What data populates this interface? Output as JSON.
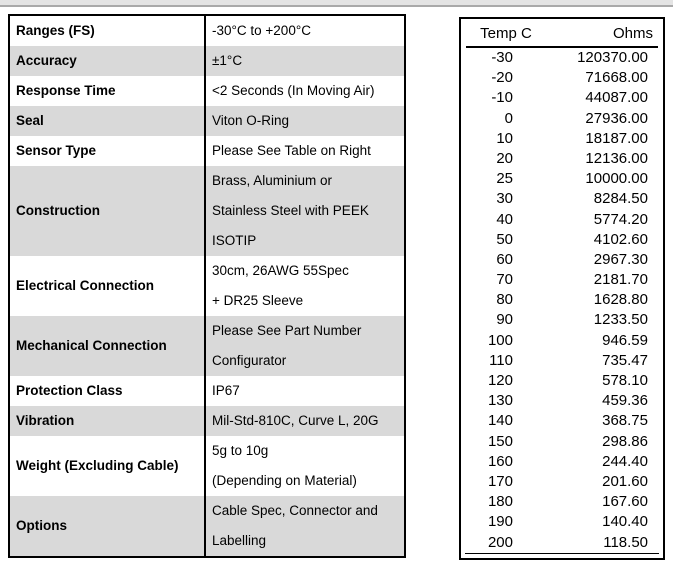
{
  "page": {
    "background": "#ffffff",
    "top_rule_color": "#e4e4e4",
    "top_rule_edge_color": "#a9a9a9"
  },
  "spec_table": {
    "shading_color": "#d9d9d9",
    "border_color": "#000000",
    "rows": [
      {
        "label": "Ranges (FS)",
        "value": "-30°C to +200°C"
      },
      {
        "label": "Accuracy",
        "value": "±1°C"
      },
      {
        "label": "Response Time",
        "value": "<2 Seconds (In Moving Air)"
      },
      {
        "label": "Seal",
        "value": "Viton O-Ring"
      },
      {
        "label": "Sensor Type",
        "value": "Please See Table on Right"
      },
      {
        "label": "Construction",
        "value": "Brass, Aluminium or\nStainless Steel with PEEK\nISOTIP"
      },
      {
        "label": "Electrical Connection",
        "value": "30cm, 26AWG 55Spec\n+ DR25 Sleeve"
      },
      {
        "label": "Mechanical Connection",
        "value": "Please See Part Number\nConfigurator"
      },
      {
        "label": "Protection Class",
        "value": "IP67"
      },
      {
        "label": "Vibration",
        "value": "Mil-Std-810C, Curve L, 20G"
      },
      {
        "label": "Weight (Excluding Cable)",
        "value": "5g to 10g\n(Depending on Material)"
      },
      {
        "label": "Options",
        "value": "Cable Spec, Connector and\nLabelling"
      }
    ]
  },
  "resistance_table": {
    "headers": {
      "temp": "Temp C",
      "ohms": "Ohms"
    },
    "rows": [
      {
        "temp": "-30",
        "ohms": "120370.00"
      },
      {
        "temp": "-20",
        "ohms": "71668.00"
      },
      {
        "temp": "-10",
        "ohms": "44087.00"
      },
      {
        "temp": "0",
        "ohms": "27936.00"
      },
      {
        "temp": "10",
        "ohms": "18187.00"
      },
      {
        "temp": "20",
        "ohms": "12136.00"
      },
      {
        "temp": "25",
        "ohms": "10000.00"
      },
      {
        "temp": "30",
        "ohms": "8284.50"
      },
      {
        "temp": "40",
        "ohms": "5774.20"
      },
      {
        "temp": "50",
        "ohms": "4102.60"
      },
      {
        "temp": "60",
        "ohms": "2967.30"
      },
      {
        "temp": "70",
        "ohms": "2181.70"
      },
      {
        "temp": "80",
        "ohms": "1628.80"
      },
      {
        "temp": "90",
        "ohms": "1233.50"
      },
      {
        "temp": "100",
        "ohms": "946.59"
      },
      {
        "temp": "110",
        "ohms": "735.47"
      },
      {
        "temp": "120",
        "ohms": "578.10"
      },
      {
        "temp": "130",
        "ohms": "459.36"
      },
      {
        "temp": "140",
        "ohms": "368.75"
      },
      {
        "temp": "150",
        "ohms": "298.86"
      },
      {
        "temp": "160",
        "ohms": "244.40"
      },
      {
        "temp": "170",
        "ohms": "201.60"
      },
      {
        "temp": "180",
        "ohms": "167.60"
      },
      {
        "temp": "190",
        "ohms": "140.40"
      },
      {
        "temp": "200",
        "ohms": "118.50"
      }
    ]
  }
}
